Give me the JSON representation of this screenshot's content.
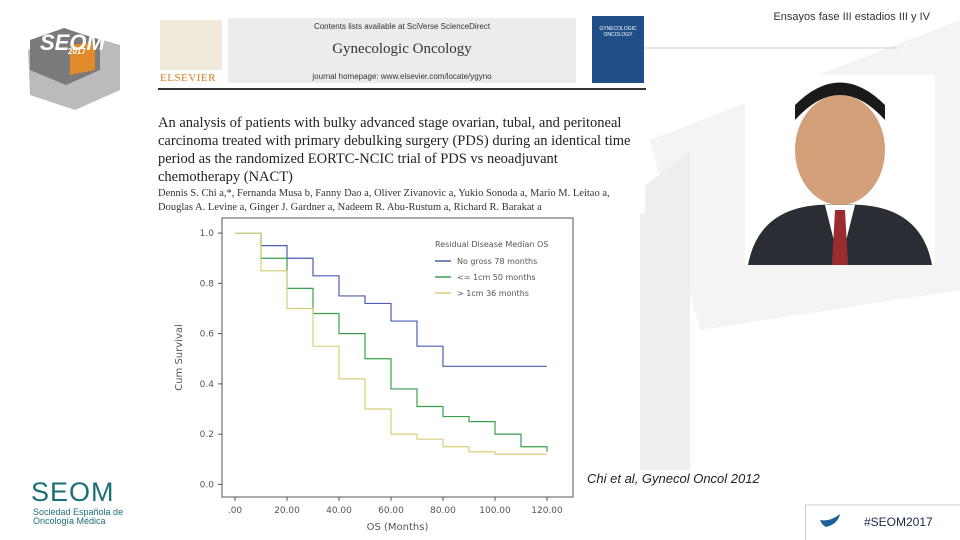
{
  "header": {
    "title": "Ensayos fase III estadios III y IV"
  },
  "journal": {
    "contents": "Contents lists available at SciVerse ScienceDirect",
    "name": "Gynecologic Oncology",
    "homepage": "journal homepage: www.elsevier.com/locate/ygyno",
    "publisher": "ELSEVIER",
    "cover": "GYNECOLOGIC ONCOLOGY"
  },
  "article": {
    "title": "An analysis of patients with bulky advanced stage ovarian, tubal, and peritoneal carcinoma treated with primary debulking surgery (PDS) during an identical time period as the randomized EORTC-NCIC trial of PDS vs neoadjuvant chemotherapy (NACT)",
    "authors": "Dennis S. Chi a,*, Fernanda Musa b, Fanny Dao a, Oliver Zivanovic a, Yukio Sonoda a, Mario M. Leitao a, Douglas A. Levine a, Ginger J. Gardner a, Nadeem R. Abu-Rustum a, Richard R. Barakat a"
  },
  "chart_data": {
    "type": "line",
    "shape": "step",
    "x_label": "OS (Months)",
    "y_label": "Cum Survival",
    "legend_title": "Residual Disease Median OS",
    "x": [
      0,
      10,
      20,
      30,
      40,
      50,
      60,
      70,
      80,
      90,
      100,
      110,
      120
    ],
    "series": [
      {
        "name": "No gross 78 months",
        "color": "#4a5fb0",
        "values": [
          1.0,
          0.95,
          0.9,
          0.83,
          0.75,
          0.72,
          0.65,
          0.55,
          0.47,
          0.47,
          0.47,
          0.47,
          0.47
        ]
      },
      {
        "name": "<= 1cm 50 months",
        "color": "#3aa04a",
        "values": [
          1.0,
          0.9,
          0.78,
          0.68,
          0.6,
          0.5,
          0.38,
          0.31,
          0.27,
          0.25,
          0.2,
          0.15,
          0.13
        ]
      },
      {
        "name": "> 1cm 36 months",
        "color": "#d8cf7a",
        "values": [
          1.0,
          0.85,
          0.7,
          0.55,
          0.42,
          0.3,
          0.2,
          0.18,
          0.15,
          0.13,
          0.12,
          0.12,
          0.12
        ]
      }
    ],
    "xlim": [
      -5,
      130
    ],
    "ylim": [
      -0.05,
      1.06
    ],
    "xticks": [
      {
        "value": 0,
        "label": ".00"
      },
      {
        "value": 20,
        "label": "20.00"
      },
      {
        "value": 40,
        "label": "40.00"
      },
      {
        "value": 60,
        "label": "60.00"
      },
      {
        "value": 80,
        "label": "80.00"
      },
      {
        "value": 100,
        "label": "100.00"
      },
      {
        "value": 120,
        "label": "120.00"
      }
    ],
    "yticks": [
      {
        "value": 0,
        "label": "0.0"
      },
      {
        "value": 0.2,
        "label": "0.2"
      },
      {
        "value": 0.4,
        "label": "0.4"
      },
      {
        "value": 0.6,
        "label": "0.6"
      },
      {
        "value": 0.8,
        "label": "0.8"
      },
      {
        "value": 1.0,
        "label": "1.0"
      }
    ]
  },
  "citation": "Chi et al, Gynecol Oncol 2012",
  "footer": {
    "hashtag": "#SEOM2017",
    "logo": "SEOM",
    "logo_sub": "Sociedad Española de Oncología Médica",
    "event_logo": "SEOM",
    "event_year": "2017"
  }
}
